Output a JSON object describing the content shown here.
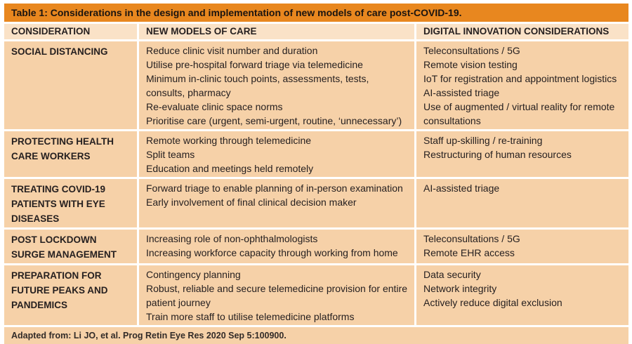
{
  "table": {
    "title": "Table 1: Considerations in the design and implementation of new models of care post-COVID-19.",
    "columns": [
      "CONSIDERATION",
      "NEW MODELS OF CARE",
      "DIGITAL INNOVATION CONSIDERATIONS"
    ],
    "rows": [
      {
        "consideration": "SOCIAL DISTANCING",
        "new_models": [
          "Reduce clinic visit number and duration",
          "Utilise pre-hospital forward triage via telemedicine",
          "Minimum in-clinic touch points, assessments, tests, consults, pharmacy",
          "Re-evaluate clinic space norms",
          "Prioritise care (urgent, semi-urgent, routine, ‘unnecessary’)"
        ],
        "digital": [
          "Teleconsultations / 5G",
          "Remote vision testing",
          "IoT for registration and appointment logistics",
          "AI-assisted triage",
          "Use of augmented / virtual reality for remote consultations"
        ]
      },
      {
        "consideration": "PROTECTING HEALTH CARE WORKERS",
        "new_models": [
          "Remote working through telemedicine",
          "Split teams",
          "Education and meetings held remotely"
        ],
        "digital": [
          "Staff up-skilling / re-training",
          "Restructuring of human resources"
        ]
      },
      {
        "consideration": "TREATING COVID-19 PATIENTS WITH EYE DISEASES",
        "new_models": [
          "Forward triage to enable planning of in-person examination",
          "Early involvement of final clinical decision maker"
        ],
        "digital": [
          "AI-assisted triage"
        ]
      },
      {
        "consideration": "POST LOCKDOWN SURGE MANAGEMENT",
        "new_models": [
          "Increasing role of non-ophthalmologists",
          "Increasing workforce capacity through working from home"
        ],
        "digital": [
          "Teleconsultations / 5G",
          "Remote EHR access"
        ]
      },
      {
        "consideration": "PREPARATION FOR FUTURE PEAKS AND PANDEMICS",
        "new_models": [
          "Contingency planning",
          "Robust, reliable and secure telemedicine provision for entire patient journey",
          "Train more staff to utilise telemedicine platforms"
        ],
        "digital": [
          "Data security",
          "Network integrity",
          "Actively reduce digital exclusion"
        ]
      }
    ],
    "footer": "Adapted from: Li JO, et al. Prog Retin Eye Res 2020 Sep 5:100900."
  },
  "colors": {
    "accent_orange": "#E8871F",
    "header_bg": "#FAE2C7",
    "cell_bg": "#F6D1A8",
    "text": "#262020"
  }
}
